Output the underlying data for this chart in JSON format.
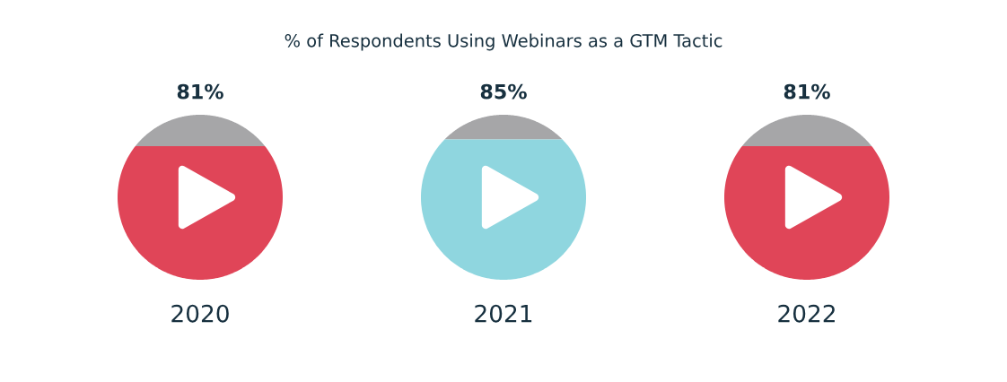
{
  "chart_data": {
    "type": "other",
    "title": "% of Respondents Using Webinars as a GTM Tactic",
    "categories": [
      "2020",
      "2021",
      "2022"
    ],
    "values": [
      81,
      85,
      81
    ],
    "value_labels": [
      "81%",
      "85%",
      "81%"
    ],
    "colors": [
      "#e04558",
      "#8fd6df",
      "#e04558"
    ]
  }
}
